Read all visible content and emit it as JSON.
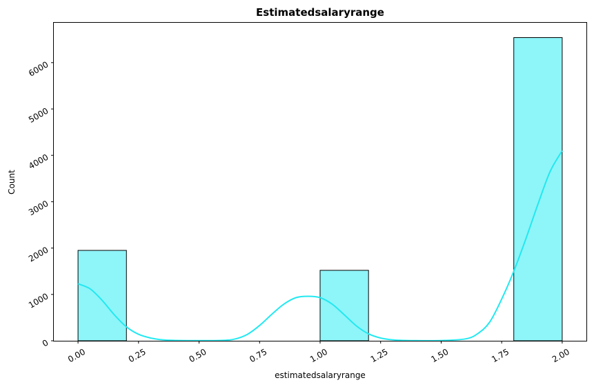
{
  "chart_data": {
    "type": "bar",
    "title": "Estimatedsalaryrange",
    "xlabel": "estimatedsalaryrange",
    "ylabel": "Count",
    "xlim": [
      -0.1,
      2.1
    ],
    "ylim": [
      0,
      6860
    ],
    "x_ticks": [
      "0.00",
      "0.25",
      "0.50",
      "0.75",
      "1.00",
      "1.25",
      "1.50",
      "1.75",
      "2.00"
    ],
    "x_tick_values": [
      0,
      0.25,
      0.5,
      0.75,
      1.0,
      1.25,
      1.5,
      1.75,
      2.0
    ],
    "y_ticks": [
      "0",
      "1000",
      "2000",
      "3000",
      "4000",
      "5000",
      "6000"
    ],
    "y_tick_values": [
      0,
      1000,
      2000,
      3000,
      4000,
      5000,
      6000
    ],
    "bins": [
      {
        "x0": 0.0,
        "x1": 0.2,
        "count": 1950
      },
      {
        "x0": 1.0,
        "x1": 1.2,
        "count": 1520
      },
      {
        "x0": 1.8,
        "x1": 2.0,
        "count": 6540
      }
    ],
    "kde": {
      "x": [
        0.0,
        0.05,
        0.1,
        0.15,
        0.2,
        0.25,
        0.3,
        0.35,
        0.4,
        0.5,
        0.6,
        0.65,
        0.7,
        0.75,
        0.8,
        0.85,
        0.9,
        0.95,
        1.0,
        1.05,
        1.1,
        1.15,
        1.2,
        1.25,
        1.3,
        1.35,
        1.4,
        1.5,
        1.6,
        1.65,
        1.7,
        1.75,
        1.8,
        1.85,
        1.9,
        1.95,
        2.0
      ],
      "y": [
        1230,
        1120,
        870,
        560,
        300,
        140,
        60,
        20,
        8,
        3,
        10,
        40,
        140,
        330,
        570,
        790,
        930,
        960,
        930,
        790,
        560,
        320,
        150,
        60,
        20,
        7,
        3,
        5,
        40,
        150,
        400,
        900,
        1500,
        2200,
        2950,
        3650,
        4100
      ]
    },
    "grid": false,
    "legend": "none",
    "bar_color": "#8ef5f9",
    "bar_edge_color": "#000000",
    "kde_color": "#22e8f0",
    "tick_rotation": 30
  }
}
